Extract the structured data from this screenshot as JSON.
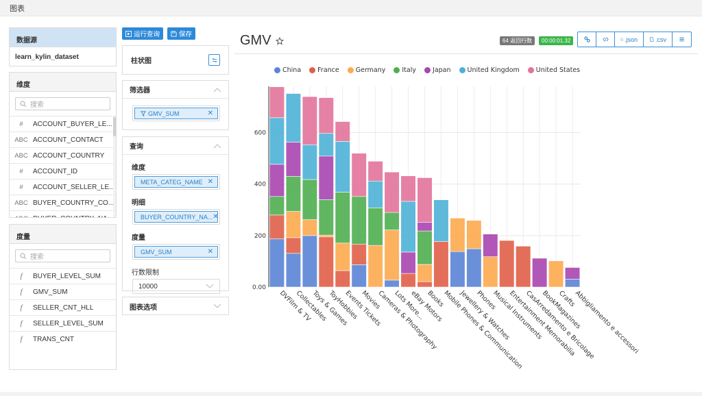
{
  "topbar": {
    "title": "图表"
  },
  "datasource": {
    "header": "数据源",
    "value": "learn_kylin_dataset"
  },
  "dimensions": {
    "header": "维度",
    "search_placeholder": "搜索",
    "items": [
      {
        "type": "#",
        "name": "ACCOUNT_BUYER_LE..."
      },
      {
        "type": "ABC",
        "name": "ACCOUNT_CONTACT"
      },
      {
        "type": "ABC",
        "name": "ACCOUNT_COUNTRY"
      },
      {
        "type": "#",
        "name": "ACCOUNT_ID"
      },
      {
        "type": "#",
        "name": "ACCOUNT_SELLER_LE..."
      },
      {
        "type": "ABC",
        "name": "BUYER_COUNTRY_CO..."
      },
      {
        "type": "ABC",
        "name": "BUYER_COUNTRY_NA..."
      }
    ]
  },
  "measures": {
    "header": "度量",
    "search_placeholder": "搜索",
    "items": [
      {
        "type": "f",
        "name": "BUYER_LEVEL_SUM"
      },
      {
        "type": "f",
        "name": "GMV_SUM"
      },
      {
        "type": "f",
        "name": "SELLER_CNT_HLL"
      },
      {
        "type": "f",
        "name": "SELLER_LEVEL_SUM"
      },
      {
        "type": "f",
        "name": "TRANS_CNT"
      }
    ]
  },
  "toolbar": {
    "run_label": "运行查询",
    "save_label": "保存"
  },
  "viz_type": {
    "label": "柱状图"
  },
  "filters": {
    "header": "筛选器",
    "chip": "GMV_SUM"
  },
  "query": {
    "header": "查询",
    "dimension_label": "维度",
    "dimension_chip": "META_CATEG_NAME",
    "detail_label": "明细",
    "detail_chip": "BUYER_COUNTRY_NA...",
    "measure_label": "度量",
    "measure_chip": "GMV_SUM",
    "row_limit_label": "行数限制",
    "row_limit_value": "10000"
  },
  "chart_options": {
    "header": "图表选项"
  },
  "chart_header": {
    "title": "GMV",
    "rows_badge": "64 返回行数",
    "time_badge": "00:00:01.32",
    "buttons": {
      "link": "",
      "embed": "",
      "json": ".json",
      "csv": ".csv",
      "menu": ""
    }
  },
  "chart_data": {
    "type": "bar",
    "stacked": true,
    "title": "GMV",
    "xlabel": "",
    "ylabel": "",
    "ylim": [
      0,
      780
    ],
    "yticks": [
      0,
      200,
      400,
      600
    ],
    "ytick_labels": [
      "0.00",
      "200",
      "400",
      "600"
    ],
    "grid": true,
    "legend_position": "top",
    "categories": [
      "DVFilm & TV",
      "Collectables",
      "Toys & Games",
      "ToyHobbies",
      "Events Tickets",
      "Movies",
      "Cameras & Photography",
      "Lots More...",
      "eBay Motors",
      "Books",
      "Mobile Phones & Communication",
      "Jewellery & Watches",
      "Phones",
      "Musical Instruments",
      "Entertainment Memorabilia",
      "CasArredamento e Bricolage",
      "BookMagazines",
      "Crafts",
      "Abbigliamento e accessori"
    ],
    "series": [
      {
        "name": "China",
        "color": "#5b84d6",
        "values": [
          187,
          131,
          200,
          0,
          0,
          87,
          0,
          27,
          0,
          0,
          0,
          138,
          149,
          0,
          0,
          0,
          0,
          0,
          31
        ]
      },
      {
        "name": "France",
        "color": "#e05f49",
        "values": [
          93,
          61,
          0,
          195,
          64,
          80,
          0,
          0,
          53,
          21,
          177,
          0,
          0,
          0,
          181,
          159,
          0,
          0,
          0
        ]
      },
      {
        "name": "Germany",
        "color": "#fdaa4f",
        "values": [
          0,
          102,
          62,
          7,
          107,
          0,
          162,
          195,
          0,
          67,
          0,
          130,
          110,
          118,
          0,
          0,
          0,
          102,
          0
        ]
      },
      {
        "name": "Italy",
        "color": "#4fae50",
        "values": [
          72,
          136,
          156,
          138,
          198,
          185,
          146,
          68,
          0,
          130,
          0,
          0,
          0,
          0,
          0,
          0,
          0,
          0,
          0
        ]
      },
      {
        "name": "Japan",
        "color": "#a945b0",
        "values": [
          125,
          133,
          0,
          169,
          0,
          0,
          0,
          0,
          83,
          34,
          0,
          0,
          0,
          88,
          0,
          0,
          112,
          0,
          45
        ]
      },
      {
        "name": "United Kingdom",
        "color": "#4cb1d6",
        "values": [
          181,
          189,
          135,
          88,
          197,
          0,
          104,
          0,
          197,
          0,
          162,
          0,
          0,
          0,
          0,
          0,
          0,
          0,
          0
        ]
      },
      {
        "name": "United States",
        "color": "#e2739a",
        "values": [
          120,
          0,
          187,
          139,
          77,
          168,
          77,
          157,
          99,
          173,
          0,
          0,
          0,
          0,
          0,
          0,
          0,
          0,
          0
        ]
      }
    ]
  }
}
